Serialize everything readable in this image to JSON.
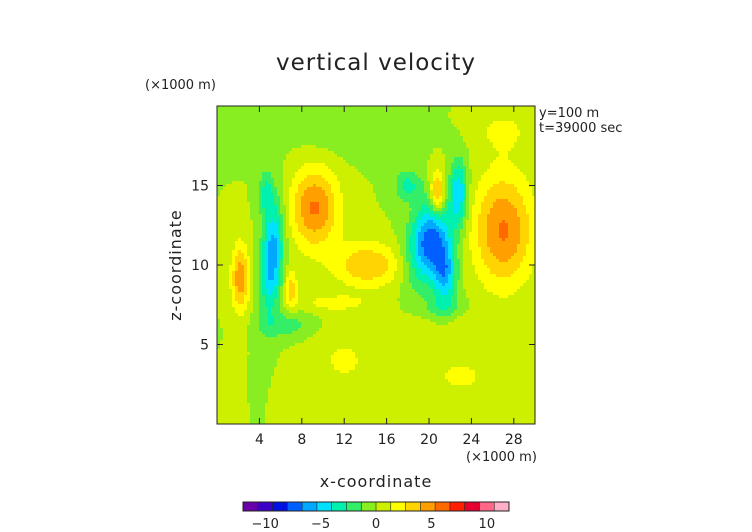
{
  "chart_data": {
    "type": "heatmap",
    "title": "vertical velocity",
    "xlabel": "x-coordinate",
    "ylabel": "z-coordinate",
    "x_unit": "(×1000 m)",
    "y_unit": "(×1000 m)",
    "annotations": [
      "y=100 m",
      "t=39000 sec"
    ],
    "xlim": [
      0,
      30
    ],
    "ylim": [
      0,
      20
    ],
    "x_ticks": [
      4,
      8,
      12,
      16,
      20,
      24,
      28
    ],
    "y_ticks": [
      5,
      10,
      15
    ],
    "colorbar": {
      "range": [
        -12,
        12
      ],
      "ticks": [
        -10,
        -5,
        0,
        5,
        10
      ],
      "colors": [
        "#6a00a8",
        "#3c00c8",
        "#0010e0",
        "#0060ff",
        "#00a8ff",
        "#00e0ff",
        "#00f0b0",
        "#33ee66",
        "#88ee22",
        "#ccf000",
        "#ffff00",
        "#ffd400",
        "#ffa000",
        "#ff6a00",
        "#ff2000",
        "#e60030",
        "#ff6688",
        "#ffb0c8"
      ]
    },
    "features": [
      {
        "x": 5.2,
        "z": 10.5,
        "sx": 0.7,
        "sz": 2.4,
        "amp": -6.5,
        "tilt": 0.08
      },
      {
        "x": 4.6,
        "z": 14.5,
        "sx": 0.5,
        "sz": 1.0,
        "amp": -3.0,
        "tilt": 0.0
      },
      {
        "x": 9.2,
        "z": 13.6,
        "sx": 1.6,
        "sz": 1.8,
        "amp": 5.5,
        "tilt": 0.0
      },
      {
        "x": 2.2,
        "z": 9.2,
        "sx": 0.6,
        "sz": 1.5,
        "amp": 5.0,
        "tilt": 0.0
      },
      {
        "x": 7.0,
        "z": 8.5,
        "sx": 0.4,
        "sz": 0.8,
        "amp": 3.5,
        "tilt": 0.0
      },
      {
        "x": 14.2,
        "z": 10.0,
        "sx": 2.2,
        "sz": 1.0,
        "amp": 4.0,
        "tilt": 0.0
      },
      {
        "x": 20.0,
        "z": 11.5,
        "sx": 1.3,
        "sz": 1.8,
        "amp": -7.5,
        "tilt": 0.2
      },
      {
        "x": 21.5,
        "z": 9.5,
        "sx": 0.8,
        "sz": 1.4,
        "amp": -5.5,
        "tilt": 0.0
      },
      {
        "x": 18.0,
        "z": 15.0,
        "sx": 0.9,
        "sz": 0.7,
        "amp": -3.0,
        "tilt": 0.0
      },
      {
        "x": 22.8,
        "z": 14.5,
        "sx": 0.6,
        "sz": 1.5,
        "amp": -5.0,
        "tilt": 0.0
      },
      {
        "x": 20.8,
        "z": 14.5,
        "sx": 0.5,
        "sz": 1.0,
        "amp": 5.5,
        "tilt": 0.0
      },
      {
        "x": 27.0,
        "z": 12.2,
        "sx": 2.0,
        "sz": 2.5,
        "amp": 5.5,
        "tilt": 0.0
      },
      {
        "x": 11.0,
        "z": 7.6,
        "sx": 2.5,
        "sz": 0.4,
        "amp": 1.8,
        "tilt": 0.0
      },
      {
        "x": 22.5,
        "z": 6.5,
        "sx": 3.0,
        "sz": 0.5,
        "amp": 1.5,
        "tilt": 0.0
      },
      {
        "x": 6.5,
        "z": 6.2,
        "sx": 1.8,
        "sz": 0.6,
        "amp": -2.0,
        "tilt": 0.0
      },
      {
        "x": 21.5,
        "z": 7.0,
        "sx": 1.5,
        "sz": 0.6,
        "amp": -2.0,
        "tilt": 0.0
      },
      {
        "x": 12.0,
        "z": 4.0,
        "sx": 2.5,
        "sz": 1.5,
        "amp": 1.5,
        "tilt": 0.0
      },
      {
        "x": 23.0,
        "z": 3.0,
        "sx": 3.0,
        "sz": 1.2,
        "amp": 1.5,
        "tilt": 0.0
      },
      {
        "x": 27.0,
        "z": 18.5,
        "sx": 2.0,
        "sz": 1.0,
        "amp": 1.5,
        "tilt": 0.0
      },
      {
        "x": 12.0,
        "z": 18.5,
        "sx": 4.0,
        "sz": 1.2,
        "amp": -1.0,
        "tilt": 0.0
      }
    ]
  }
}
